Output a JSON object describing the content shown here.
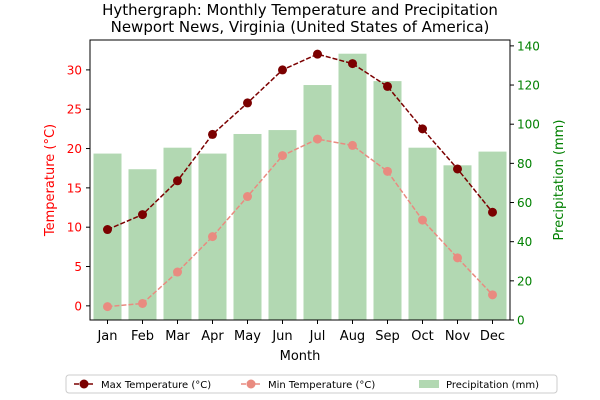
{
  "chart_data": {
    "type": "bar+line",
    "title": "Hythergraph: Monthly Temperature and Precipitation",
    "subtitle": "Newport News, Virginia (United States of America)",
    "xlabel": "Month",
    "ylabel_left": "Temperature (°C)",
    "ylabel_right": "Precipitation (mm)",
    "categories": [
      "Jan",
      "Feb",
      "Mar",
      "Apr",
      "May",
      "Jun",
      "Jul",
      "Aug",
      "Sep",
      "Oct",
      "Nov",
      "Dec"
    ],
    "y_left_ticks": [
      0,
      5,
      10,
      15,
      20,
      25,
      30
    ],
    "y_right_ticks": [
      0,
      20,
      40,
      60,
      80,
      100,
      120,
      140
    ],
    "ylim_left": [
      -1.8,
      33.8
    ],
    "ylim_right": [
      0,
      143
    ],
    "series": [
      {
        "name": "Precipitation (mm)",
        "axis": "right",
        "kind": "bar",
        "color": "#b2d8b2",
        "values": [
          85,
          77,
          88,
          85,
          95,
          97,
          120,
          136,
          122,
          88,
          79,
          86
        ]
      },
      {
        "name": "Max Temperature (°C)",
        "axis": "left",
        "kind": "line",
        "color": "#7b0000",
        "dashed": true,
        "values": [
          9.7,
          11.6,
          15.9,
          21.8,
          25.8,
          30.0,
          32.0,
          30.8,
          27.9,
          22.5,
          17.4,
          11.9
        ]
      },
      {
        "name": "Min Temperature (°C)",
        "axis": "left",
        "kind": "line",
        "color": "#e98b80",
        "dashed": true,
        "values": [
          -0.1,
          0.3,
          4.3,
          8.8,
          13.9,
          19.1,
          21.2,
          20.4,
          17.1,
          10.9,
          6.1,
          1.4
        ]
      }
    ],
    "legend_order": [
      1,
      2,
      0
    ],
    "legend_position": "bottom-center",
    "left_axis_color": "#ff0000",
    "right_axis_color": "#008000",
    "grid": false
  }
}
